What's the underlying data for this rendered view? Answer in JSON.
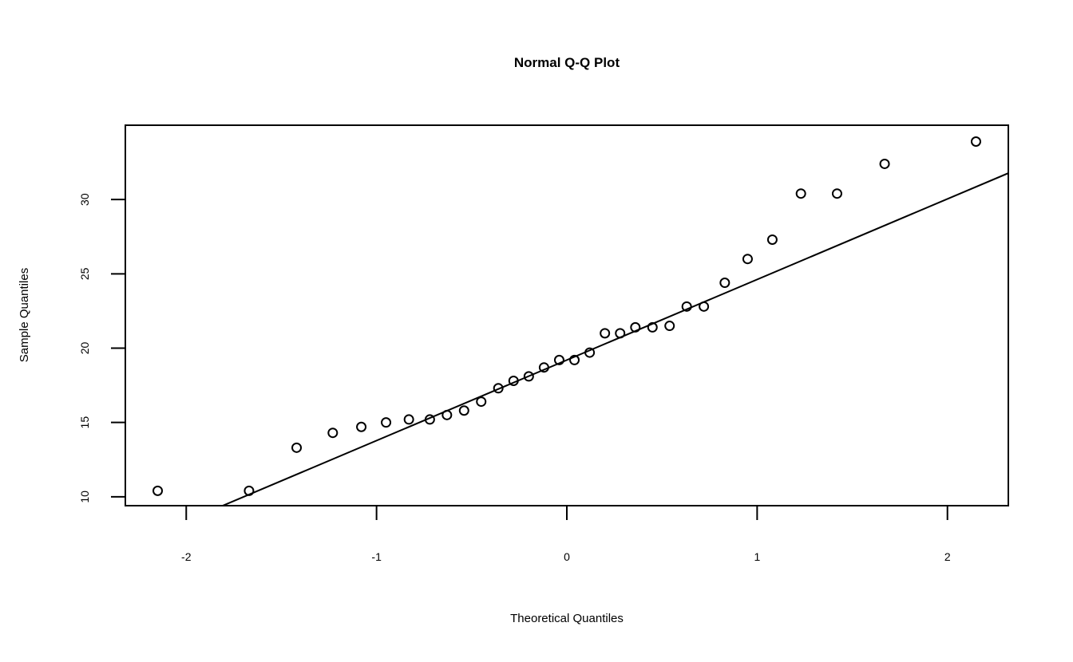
{
  "chart_data": {
    "type": "scatter",
    "title": "Normal Q-Q Plot",
    "xlabel": "Theoretical Quantiles",
    "ylabel": "Sample Quantiles",
    "xlim": [
      -2.32,
      2.32
    ],
    "ylim": [
      9.4,
      35.0
    ],
    "x_ticks": [
      -2,
      -1,
      0,
      1,
      2
    ],
    "x_tick_labels": [
      "-2",
      "-1",
      "0",
      "1",
      "2"
    ],
    "y_ticks": [
      10,
      15,
      20,
      25,
      30
    ],
    "y_tick_labels": [
      "10",
      "15",
      "20",
      "25",
      "30"
    ],
    "grid": false,
    "points": {
      "x": [
        -2.15,
        -1.67,
        -1.42,
        -1.23,
        -1.08,
        -0.95,
        -0.83,
        -0.72,
        -0.63,
        -0.54,
        -0.45,
        -0.36,
        -0.28,
        -0.2,
        -0.12,
        -0.04,
        0.04,
        0.12,
        0.2,
        0.28,
        0.36,
        0.45,
        0.54,
        0.63,
        0.72,
        0.83,
        0.95,
        1.08,
        1.23,
        1.42,
        1.67,
        2.15
      ],
      "y": [
        10.4,
        10.4,
        13.3,
        14.3,
        14.7,
        15.0,
        15.2,
        15.2,
        15.5,
        15.8,
        16.4,
        17.3,
        17.8,
        18.1,
        18.7,
        19.2,
        19.2,
        19.7,
        21.0,
        21.0,
        21.4,
        21.4,
        21.5,
        22.8,
        22.8,
        24.4,
        26.0,
        27.3,
        30.4,
        30.4,
        32.4,
        33.9
      ]
    },
    "reference_line": {
      "intercept": 19.2,
      "slope": 5.42
    }
  }
}
